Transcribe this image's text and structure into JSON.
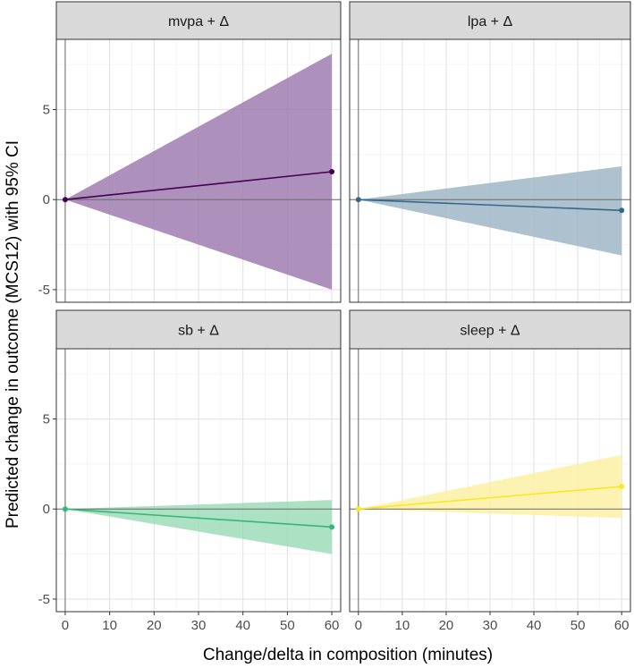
{
  "chart_data": {
    "type": "line",
    "facet_layout": "2x2",
    "xlabel": "Change/delta in composition (minutes)",
    "ylabel": "Predicted change in outcome (MCS12) with 95% CI",
    "xlim": [
      -2,
      62
    ],
    "ylim": [
      -5.7,
      8.9
    ],
    "x_ticks": [
      0,
      10,
      20,
      30,
      40,
      50,
      60
    ],
    "y_ticks": [
      -5,
      0,
      5
    ],
    "reference_lines": {
      "x": 0,
      "y": 0
    },
    "grid": true,
    "panels": [
      {
        "title": "mvpa + Δ",
        "color": "#440154",
        "ribbon_color": "#a07cb0",
        "x": [
          0,
          60
        ],
        "estimate": [
          0,
          1.55
        ],
        "ci_lower": [
          0,
          -5.0
        ],
        "ci_upper": [
          0,
          8.1
        ]
      },
      {
        "title": "lpa + Δ",
        "color": "#31688e",
        "ribbon_color": "#9fb6c6",
        "x": [
          0,
          60
        ],
        "estimate": [
          0,
          -0.6
        ],
        "ci_lower": [
          0,
          -3.1
        ],
        "ci_upper": [
          0,
          1.85
        ]
      },
      {
        "title": "sb + Δ",
        "color": "#35b779",
        "ribbon_color": "#9ddcb8",
        "x": [
          0,
          60
        ],
        "estimate": [
          0,
          -1.0
        ],
        "ci_lower": [
          0,
          -2.5
        ],
        "ci_upper": [
          0,
          0.5
        ]
      },
      {
        "title": "sleep + Δ",
        "color": "#fde725",
        "ribbon_color": "#fbf1a6",
        "x": [
          0,
          60
        ],
        "estimate": [
          0,
          1.25
        ],
        "ci_lower": [
          0,
          -0.5
        ],
        "ci_upper": [
          0,
          3.0
        ]
      }
    ]
  }
}
